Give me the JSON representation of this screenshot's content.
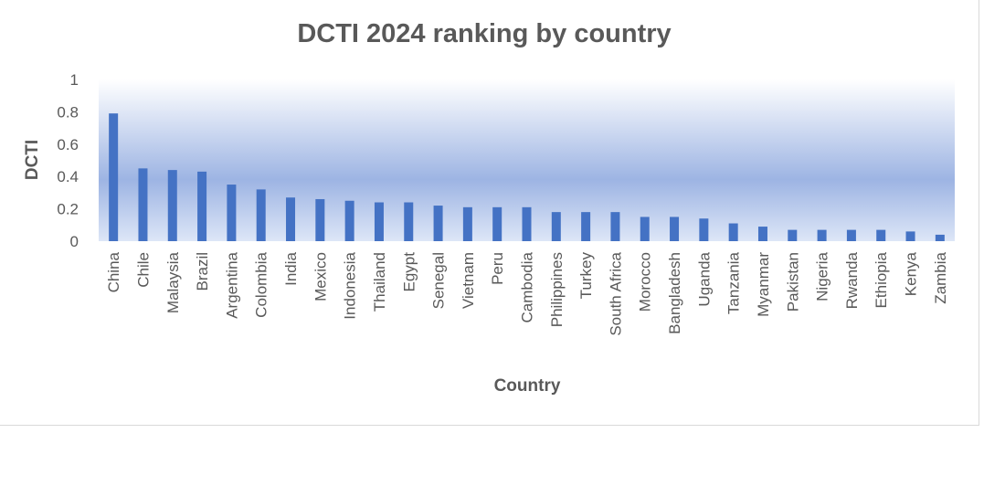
{
  "chart_data": {
    "type": "bar",
    "title": "DCTI 2024 ranking by country",
    "xlabel": "Country",
    "ylabel": "DCTI",
    "ylim": [
      0,
      1
    ],
    "yticks": [
      0,
      0.2,
      0.4,
      0.6,
      0.8,
      1
    ],
    "ytick_labels": [
      "0",
      "0.2",
      "0.4",
      "0.6",
      "0.8",
      "1"
    ],
    "grid": false,
    "legend": "none",
    "bar_color": "#4472c4",
    "plot_background": "gradient light-blue",
    "categories": [
      "China",
      "Chile",
      "Malaysia",
      "Brazil",
      "Argentina",
      "Colombia",
      "India",
      "Mexico",
      "Indonesia",
      "Thailand",
      "Egypt",
      "Senegal",
      "Vietnam",
      "Peru",
      "Cambodia",
      "Philippines",
      "Turkey",
      "South Africa",
      "Morocco",
      "Bangladesh",
      "Uganda",
      "Tanzania",
      "Myanmar",
      "Pakistan",
      "Nigeria",
      "Rwanda",
      "Ethiopia",
      "Kenya",
      "Zambia"
    ],
    "values": [
      0.79,
      0.45,
      0.44,
      0.43,
      0.35,
      0.32,
      0.27,
      0.26,
      0.25,
      0.24,
      0.24,
      0.22,
      0.21,
      0.21,
      0.21,
      0.18,
      0.18,
      0.18,
      0.15,
      0.15,
      0.14,
      0.11,
      0.09,
      0.07,
      0.07,
      0.07,
      0.07,
      0.06,
      0.04
    ]
  }
}
